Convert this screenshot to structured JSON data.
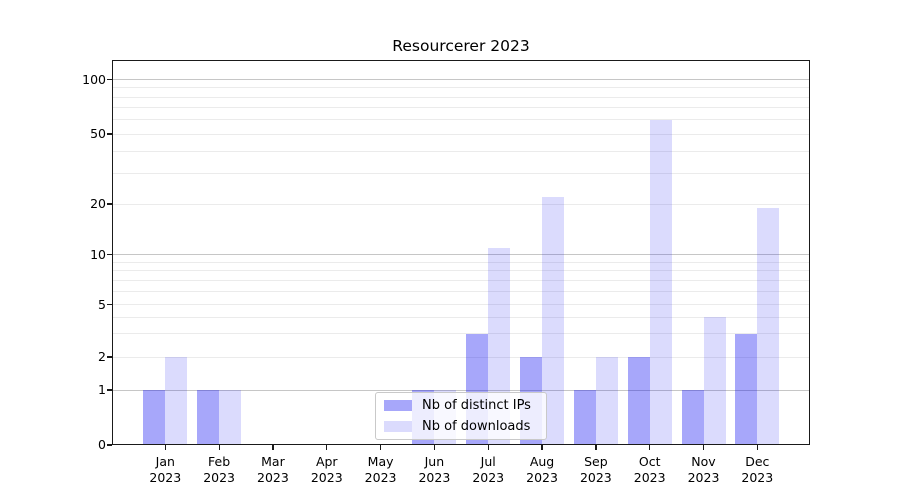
{
  "chart_data": {
    "type": "bar",
    "title": "Resourcerer 2023",
    "categories": [
      {
        "line1": "Jan",
        "line2": "2023"
      },
      {
        "line1": "Feb",
        "line2": "2023"
      },
      {
        "line1": "Mar",
        "line2": "2023"
      },
      {
        "line1": "Apr",
        "line2": "2023"
      },
      {
        "line1": "May",
        "line2": "2023"
      },
      {
        "line1": "Jun",
        "line2": "2023"
      },
      {
        "line1": "Jul",
        "line2": "2023"
      },
      {
        "line1": "Aug",
        "line2": "2023"
      },
      {
        "line1": "Sep",
        "line2": "2023"
      },
      {
        "line1": "Oct",
        "line2": "2023"
      },
      {
        "line1": "Nov",
        "line2": "2023"
      },
      {
        "line1": "Dec",
        "line2": "2023"
      }
    ],
    "series": [
      {
        "name": "Nb of distinct IPs",
        "color": "rgba(10,10,242,0.36)",
        "values": [
          1,
          1,
          0,
          0,
          0,
          1,
          3,
          2,
          1,
          2,
          1,
          3
        ]
      },
      {
        "name": "Nb of downloads",
        "color": "rgba(10,10,242,0.145)",
        "values": [
          2,
          1,
          0,
          0,
          0,
          1,
          11,
          22,
          2,
          60,
          4,
          19
        ]
      }
    ],
    "yticks": [
      0,
      1,
      2,
      5,
      10,
      20,
      50,
      100
    ],
    "grid_minor_values": [
      3,
      4,
      6,
      7,
      8,
      9,
      30,
      40,
      60,
      70,
      80,
      90
    ],
    "grid_major_values": [
      1,
      10,
      100
    ],
    "scale": "symlog",
    "ylim": [
      0,
      130
    ],
    "grid": "horizontal",
    "legend_position": "lower center",
    "colors": {
      "grid_minor": "#ebebeb",
      "grid_major": "#c6c6c6",
      "axis": "#1a1a1a",
      "text": "#000000"
    }
  }
}
